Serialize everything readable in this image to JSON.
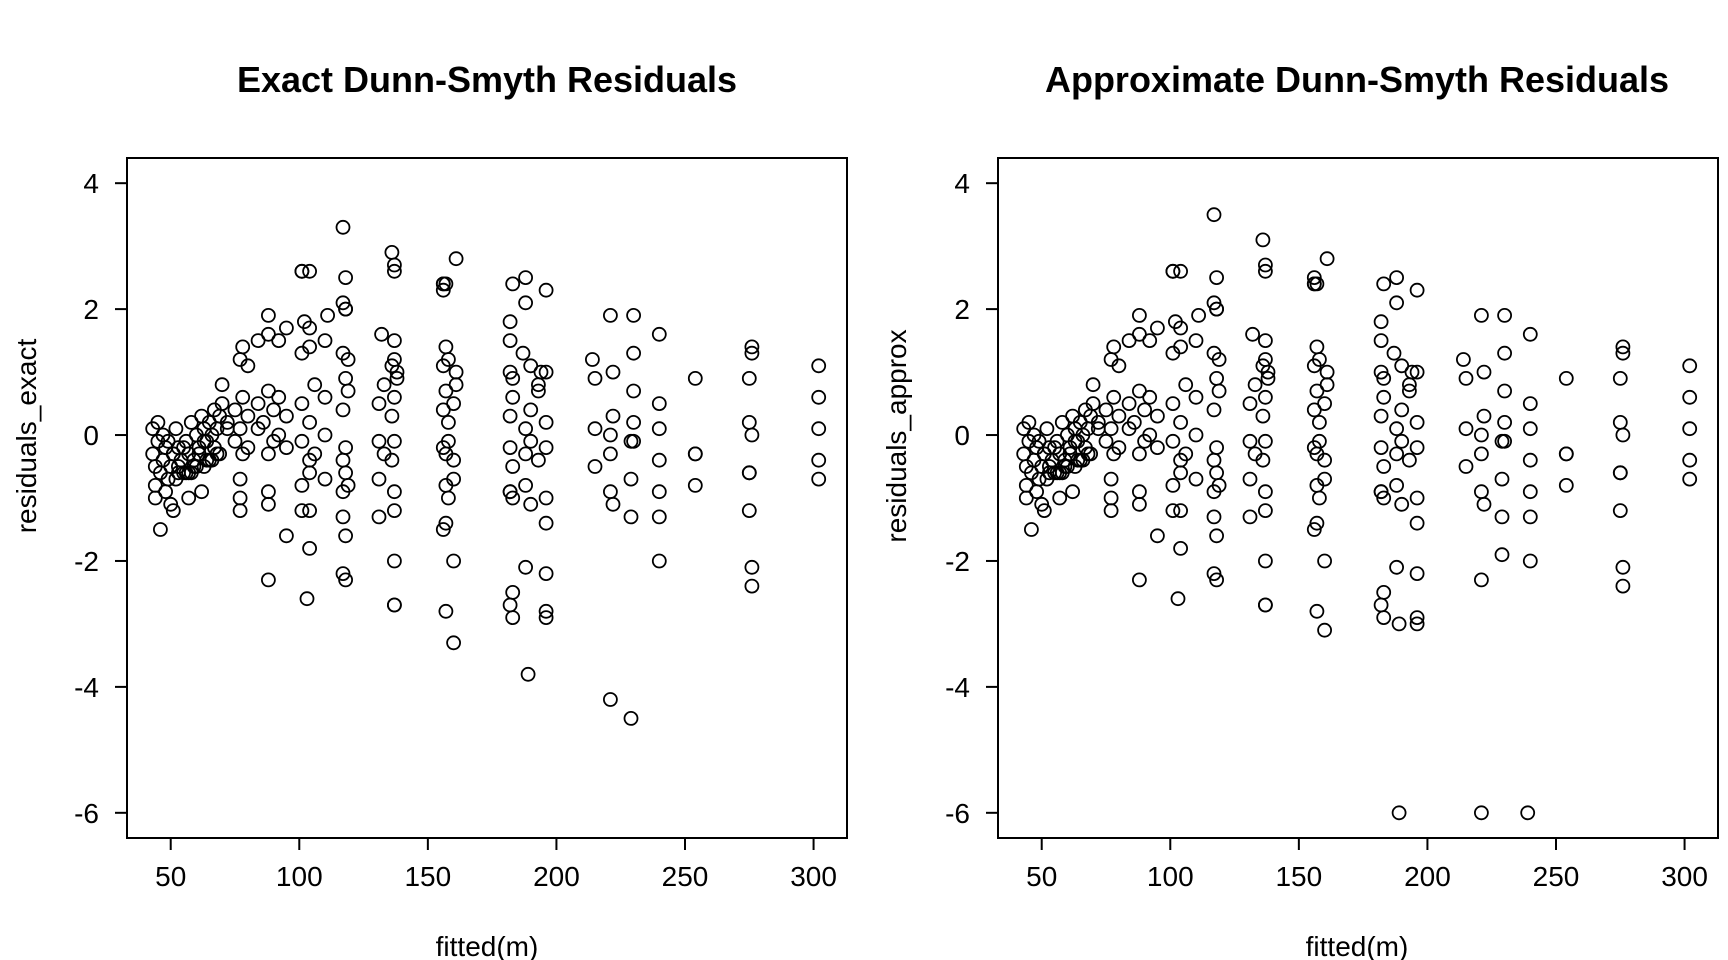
{
  "chart_data": [
    {
      "type": "scatter",
      "title": "Exact Dunn-Smyth Residuals",
      "xlabel": "fitted(m)",
      "ylabel": "residuals_exact",
      "xlim": [
        33,
        313
      ],
      "ylim": [
        -6.4,
        4.4
      ],
      "xticks": [
        50,
        100,
        150,
        200,
        250,
        300
      ],
      "yticks": [
        -6,
        -4,
        -2,
        0,
        2,
        4
      ],
      "x": [
        43,
        44,
        45,
        46,
        47,
        48,
        49,
        50,
        51,
        52,
        53,
        54,
        55,
        56,
        57,
        58,
        59,
        60,
        61,
        62,
        63,
        64,
        65,
        66,
        67,
        68,
        69,
        70,
        72,
        75,
        77,
        78,
        80,
        84,
        86,
        88,
        90,
        92,
        95,
        101,
        104,
        106,
        110,
        117,
        118,
        119,
        131,
        133,
        136,
        137,
        138,
        156,
        157,
        158,
        160,
        161,
        182,
        183,
        188,
        190,
        193,
        196,
        215,
        221,
        222,
        229,
        230,
        240,
        254,
        275,
        276,
        302,
        43,
        45,
        47,
        49,
        51,
        53,
        55,
        57,
        59,
        61,
        63,
        65,
        67,
        69,
        72,
        75,
        78,
        80,
        84,
        88,
        90,
        92,
        95,
        101,
        104,
        106,
        110,
        117,
        118,
        131,
        133,
        136,
        137,
        156,
        157,
        158,
        160,
        182,
        183,
        188,
        190,
        193,
        196,
        215,
        221,
        230,
        240,
        254,
        275,
        302,
        44,
        48,
        52,
        56,
        60,
        64,
        68,
        77,
        88,
        101,
        104,
        110,
        117,
        118,
        119,
        131,
        137,
        157,
        160,
        182,
        188,
        196,
        221,
        229,
        240,
        254,
        275,
        302,
        44,
        50,
        53,
        58,
        63,
        66,
        77,
        80,
        88,
        92,
        101,
        104,
        110,
        117,
        119,
        136,
        137,
        138,
        156,
        158,
        161,
        182,
        183,
        190,
        193,
        196,
        215,
        222,
        230,
        240,
        254,
        275,
        302,
        46,
        51,
        57,
        62,
        70,
        78,
        84,
        95,
        102,
        111,
        118,
        132,
        137,
        157,
        182,
        187,
        194,
        214,
        230,
        276,
        88,
        101,
        117,
        137,
        156,
        161,
        183,
        188,
        196,
        221,
        240,
        276,
        302,
        77,
        88,
        101,
        104,
        117,
        118,
        131,
        137,
        156,
        157,
        158,
        182,
        183,
        190,
        196,
        222,
        229,
        240,
        275,
        77,
        95,
        104,
        117,
        137,
        160,
        188,
        196,
        240,
        88,
        103,
        118,
        137,
        157,
        183,
        189,
        221,
        229,
        276,
        101,
        104,
        118,
        136,
        156,
        157,
        182,
        196,
        104,
        117,
        118,
        137,
        156,
        182,
        188,
        230,
        137,
        160,
        183,
        196,
        276
      ],
      "y": [
        -0.3,
        -0.5,
        -0.1,
        -0.6,
        -0.4,
        -0.2,
        -0.7,
        -0.5,
        -0.3,
        0.1,
        -0.2,
        -0.4,
        -0.6,
        -0.1,
        -0.3,
        0.2,
        -0.5,
        0.0,
        -0.2,
        0.3,
        0.1,
        -0.1,
        0.2,
        0.0,
        0.4,
        0.1,
        0.3,
        0.5,
        0.2,
        0.4,
        0.1,
        0.6,
        0.3,
        0.5,
        0.2,
        0.7,
        0.4,
        0.6,
        0.3,
        0.5,
        0.2,
        0.8,
        0.6,
        0.4,
        0.9,
        0.7,
        0.5,
        0.8,
        0.3,
        0.6,
        0.9,
        0.4,
        0.7,
        0.2,
        0.5,
        0.8,
        0.3,
        0.6,
        0.1,
        0.4,
        0.7,
        0.2,
        0.1,
        0.0,
        0.3,
        -0.1,
        0.2,
        0.1,
        -0.3,
        0.2,
        0.0,
        0.1,
        0.1,
        0.2,
        0.0,
        -0.1,
        -0.3,
        -0.5,
        -0.2,
        -0.6,
        -0.4,
        -0.3,
        -0.1,
        -0.4,
        -0.2,
        -0.3,
        0.1,
        -0.1,
        -0.3,
        -0.2,
        0.1,
        -0.3,
        -0.1,
        0.0,
        -0.2,
        -0.1,
        -0.4,
        -0.3,
        0.0,
        -0.4,
        -0.2,
        -0.1,
        -0.3,
        -0.4,
        -0.1,
        -0.2,
        -0.3,
        -0.1,
        -0.4,
        -0.2,
        -0.5,
        -0.3,
        -0.1,
        -0.4,
        -0.2,
        -0.5,
        -0.3,
        -0.1,
        -0.4,
        -0.3,
        -0.6,
        -0.4,
        -0.8,
        -0.9,
        -0.7,
        -0.6,
        -0.5,
        -0.4,
        -0.3,
        -0.7,
        -0.9,
        -0.8,
        -0.6,
        -0.7,
        -0.9,
        -0.6,
        -0.8,
        -0.7,
        -0.9,
        -0.8,
        -0.7,
        -0.9,
        -0.8,
        -1.0,
        -0.9,
        -0.7,
        -0.9,
        -0.8,
        -0.6,
        -0.7,
        -1.0,
        -1.1,
        -0.6,
        -0.6,
        -0.5,
        -0.4,
        1.2,
        1.1,
        1.6,
        1.5,
        1.3,
        1.4,
        1.5,
        1.3,
        1.2,
        1.1,
        1.2,
        1.0,
        1.1,
        1.2,
        1.0,
        1.0,
        0.9,
        1.1,
        0.8,
        1.0,
        0.9,
        1.0,
        0.7,
        0.5,
        0.9,
        0.9,
        1.1,
        -1.5,
        -1.2,
        -1.0,
        -0.9,
        0.8,
        1.4,
        1.5,
        1.7,
        1.8,
        1.9,
        2.0,
        1.6,
        1.5,
        1.4,
        1.5,
        1.3,
        1.0,
        1.2,
        1.3,
        1.4,
        1.9,
        2.6,
        2.1,
        2.7,
        2.4,
        2.8,
        2.4,
        2.5,
        2.3,
        1.9,
        1.6,
        1.3,
        0.6,
        -1.2,
        -1.1,
        -1.2,
        -1.2,
        -1.3,
        -1.6,
        -1.3,
        -1.2,
        -1.5,
        -1.4,
        -1.0,
        -0.9,
        -1.0,
        -1.1,
        -1.4,
        -1.1,
        -1.3,
        -1.3,
        -1.2,
        -1.0,
        -1.6,
        -1.8,
        -2.2,
        -2.0,
        -2.0,
        -2.1,
        -2.2,
        -2.0,
        -2.3,
        -2.6,
        -2.3,
        -2.7,
        -2.8,
        -2.9,
        -3.8,
        -4.2,
        -4.5,
        -2.4,
        2.6,
        2.6,
        2.0,
        2.9,
        2.3,
        2.4,
        -2.7,
        -2.9,
        1.7,
        3.3,
        2.5,
        2.6,
        2.4,
        1.8,
        2.1,
        1.9,
        -2.7,
        -3.3,
        -2.5,
        -2.8,
        -2.1
      ]
    },
    {
      "type": "scatter",
      "title": "Approximate Dunn-Smyth Residuals",
      "xlabel": "fitted(m)",
      "ylabel": "residuals_approx",
      "xlim": [
        33,
        313
      ],
      "ylim": [
        -6.4,
        4.4
      ],
      "xticks": [
        50,
        100,
        150,
        200,
        250,
        300
      ],
      "yticks": [
        -6,
        -4,
        -2,
        0,
        2,
        4
      ],
      "x": [
        43,
        44,
        45,
        46,
        47,
        48,
        49,
        50,
        51,
        52,
        53,
        54,
        55,
        56,
        57,
        58,
        59,
        60,
        61,
        62,
        63,
        64,
        65,
        66,
        67,
        68,
        69,
        70,
        72,
        75,
        77,
        78,
        80,
        84,
        86,
        88,
        90,
        92,
        95,
        101,
        104,
        106,
        110,
        117,
        118,
        119,
        131,
        133,
        136,
        137,
        138,
        156,
        157,
        158,
        160,
        161,
        182,
        183,
        188,
        190,
        193,
        196,
        215,
        221,
        222,
        229,
        230,
        240,
        254,
        275,
        276,
        302,
        43,
        45,
        47,
        49,
        51,
        53,
        55,
        57,
        59,
        61,
        63,
        65,
        67,
        69,
        72,
        75,
        78,
        80,
        84,
        88,
        90,
        92,
        95,
        101,
        104,
        106,
        110,
        117,
        118,
        131,
        133,
        136,
        137,
        156,
        157,
        158,
        160,
        182,
        183,
        188,
        190,
        193,
        196,
        215,
        221,
        230,
        240,
        254,
        275,
        302,
        44,
        48,
        52,
        56,
        60,
        64,
        68,
        77,
        88,
        101,
        104,
        110,
        117,
        118,
        119,
        131,
        137,
        157,
        160,
        182,
        188,
        196,
        221,
        229,
        240,
        254,
        275,
        302,
        44,
        50,
        53,
        58,
        63,
        66,
        77,
        80,
        88,
        92,
        101,
        104,
        110,
        117,
        119,
        136,
        137,
        138,
        156,
        158,
        161,
        182,
        183,
        190,
        193,
        196,
        215,
        222,
        230,
        240,
        254,
        275,
        302,
        46,
        51,
        57,
        62,
        70,
        78,
        84,
        95,
        102,
        111,
        118,
        132,
        137,
        157,
        182,
        187,
        194,
        214,
        230,
        276,
        88,
        101,
        117,
        137,
        156,
        161,
        183,
        188,
        196,
        221,
        240,
        276,
        302,
        77,
        88,
        101,
        104,
        117,
        118,
        131,
        137,
        156,
        157,
        158,
        182,
        183,
        190,
        196,
        222,
        229,
        240,
        275,
        77,
        95,
        104,
        117,
        137,
        160,
        188,
        196,
        240,
        88,
        103,
        118,
        137,
        157,
        183,
        189,
        221,
        229,
        276,
        101,
        104,
        118,
        136,
        156,
        157,
        182,
        196,
        104,
        117,
        118,
        137,
        156,
        182,
        188,
        230,
        137,
        160,
        183,
        196,
        276,
        189,
        221,
        239
      ],
      "y": [
        -0.3,
        -0.5,
        -0.1,
        -0.6,
        -0.4,
        -0.2,
        -0.7,
        -0.5,
        -0.3,
        0.1,
        -0.2,
        -0.4,
        -0.6,
        -0.1,
        -0.3,
        0.2,
        -0.5,
        0.0,
        -0.2,
        0.3,
        0.1,
        -0.1,
        0.2,
        0.0,
        0.4,
        0.1,
        0.3,
        0.5,
        0.2,
        0.4,
        0.1,
        0.6,
        0.3,
        0.5,
        0.2,
        0.7,
        0.4,
        0.6,
        0.3,
        0.5,
        0.2,
        0.8,
        0.6,
        0.4,
        0.9,
        0.7,
        0.5,
        0.8,
        0.3,
        0.6,
        0.9,
        0.4,
        0.7,
        0.2,
        0.5,
        0.8,
        0.3,
        0.6,
        0.1,
        0.4,
        0.7,
        0.2,
        0.1,
        0.0,
        0.3,
        -0.1,
        0.2,
        0.1,
        -0.3,
        0.2,
        0.0,
        0.1,
        0.1,
        0.2,
        0.0,
        -0.1,
        -0.3,
        -0.5,
        -0.2,
        -0.6,
        -0.4,
        -0.3,
        -0.1,
        -0.4,
        -0.2,
        -0.3,
        0.1,
        -0.1,
        -0.3,
        -0.2,
        0.1,
        -0.3,
        -0.1,
        0.0,
        -0.2,
        -0.1,
        -0.4,
        -0.3,
        0.0,
        -0.4,
        -0.2,
        -0.1,
        -0.3,
        -0.4,
        -0.1,
        -0.2,
        -0.3,
        -0.1,
        -0.4,
        -0.2,
        -0.5,
        -0.3,
        -0.1,
        -0.4,
        -0.2,
        -0.5,
        -0.3,
        -0.1,
        -0.4,
        -0.3,
        -0.6,
        -0.4,
        -0.8,
        -0.9,
        -0.7,
        -0.6,
        -0.5,
        -0.4,
        -0.3,
        -0.7,
        -0.9,
        -0.8,
        -0.6,
        -0.7,
        -0.9,
        -0.6,
        -0.8,
        -0.7,
        -0.9,
        -0.8,
        -0.7,
        -0.9,
        -0.8,
        -1.0,
        -0.9,
        -0.7,
        -0.9,
        -0.8,
        -0.6,
        -0.7,
        -1.0,
        -1.1,
        -0.6,
        -0.6,
        -0.5,
        -0.4,
        1.2,
        1.1,
        1.6,
        1.5,
        1.3,
        1.4,
        1.5,
        1.3,
        1.2,
        1.1,
        1.2,
        1.0,
        1.1,
        1.2,
        1.0,
        1.0,
        0.9,
        1.1,
        0.8,
        1.0,
        0.9,
        1.0,
        0.7,
        0.5,
        0.9,
        0.9,
        1.1,
        -1.5,
        -1.2,
        -1.0,
        -0.9,
        0.8,
        1.4,
        1.5,
        1.7,
        1.8,
        1.9,
        2.0,
        1.6,
        1.5,
        1.4,
        1.5,
        1.3,
        1.0,
        1.2,
        1.3,
        1.4,
        1.9,
        2.6,
        2.1,
        2.7,
        2.4,
        2.8,
        2.4,
        2.5,
        2.3,
        1.9,
        1.6,
        1.3,
        0.6,
        -1.2,
        -1.1,
        -1.2,
        -1.2,
        -1.3,
        -1.6,
        -1.3,
        -1.2,
        -1.5,
        -1.4,
        -1.0,
        -0.9,
        -1.0,
        -1.1,
        -1.4,
        -1.1,
        -1.3,
        -1.3,
        -1.2,
        -1.0,
        -1.6,
        -1.8,
        -2.2,
        -2.0,
        -2.0,
        -2.1,
        -2.2,
        -2.0,
        -2.3,
        -2.6,
        -2.3,
        -2.7,
        -2.8,
        -2.9,
        -3.0,
        -2.3,
        -1.9,
        -2.4,
        2.6,
        2.6,
        2.0,
        3.1,
        2.5,
        2.4,
        -2.7,
        -3.0,
        1.7,
        3.5,
        2.5,
        2.6,
        2.4,
        1.8,
        2.1,
        1.9,
        -2.7,
        -3.1,
        -2.5,
        -2.9,
        -2.1,
        -6.0,
        -6.0,
        -6.0
      ]
    }
  ]
}
